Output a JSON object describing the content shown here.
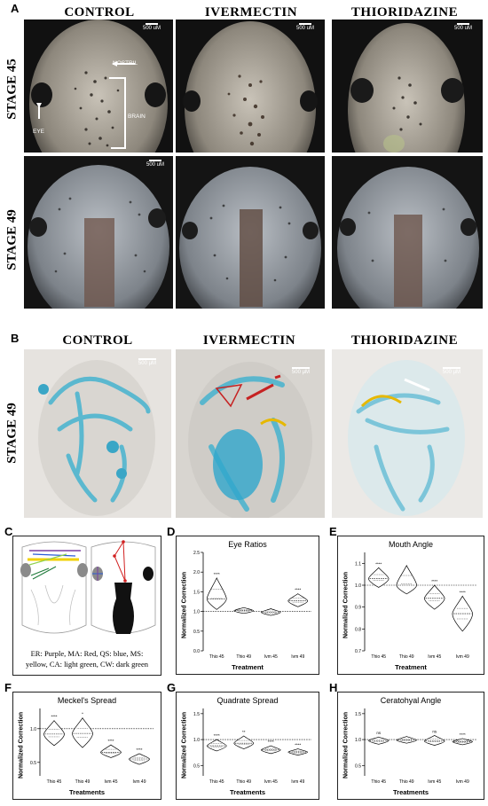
{
  "panel_labels": [
    "A",
    "B",
    "C",
    "D",
    "E",
    "F",
    "G",
    "H"
  ],
  "panel_a": {
    "columns": [
      "CONTROL",
      "IVERMECTIN",
      "THIORIDAZINE"
    ],
    "rows": [
      "STAGE 45",
      "STAGE 49"
    ],
    "annotations": {
      "nostril": "NOSTRIL",
      "eye": "EYE",
      "brain": "BRAIN"
    },
    "scale_bar": "500 uM"
  },
  "panel_b": {
    "columns": [
      "CONTROL",
      "IVERMECTIN",
      "THIORIDAZINE"
    ],
    "row": "STAGE 49",
    "scale_bar": "500 μM"
  },
  "panel_c": {
    "legend_line1": "ER: Purple, MA: Red, QS: blue, MS:",
    "legend_line2": "yellow, CA: light green, CW: dark green",
    "colors": {
      "purple": "#7a3fa0",
      "red": "#d12020",
      "blue": "#2a5bd7",
      "yellow": "#f2d000",
      "light_green": "#8fd14f",
      "dark_green": "#1f7a3a"
    }
  },
  "chart_data": [
    {
      "panel": "D",
      "type": "violin",
      "title": "Eye Ratios",
      "xlabel": "Treatment",
      "ylabel": "Normalized Correction",
      "categories": [
        "Thio 45",
        "Thio 49",
        "Ivm 45",
        "Ivm 49"
      ],
      "yticks": [
        "0.0",
        "0.5",
        "1.0",
        "1.5",
        "2.0",
        "2.5"
      ],
      "ylim": [
        0.0,
        2.5
      ],
      "reference_line": 1.0,
      "medians": [
        1.32,
        1.02,
        0.98,
        1.27
      ],
      "ranges": [
        [
          1.05,
          1.85
        ],
        [
          0.95,
          1.1
        ],
        [
          0.9,
          1.07
        ],
        [
          1.12,
          1.45
        ]
      ],
      "significance": [
        "****",
        "",
        "",
        "****"
      ]
    },
    {
      "panel": "E",
      "type": "violin",
      "title": "Mouth Angle",
      "xlabel": "Treatment",
      "ylabel": "Normalized Correction",
      "categories": [
        "Thio 45",
        "Thio 49",
        "Ivm 45",
        "Ivm 49"
      ],
      "yticks": [
        "0.7",
        "0.8",
        "0.9",
        "1.0",
        "1.1"
      ],
      "ylim": [
        0.7,
        1.15
      ],
      "reference_line": 1.0,
      "medians": [
        1.03,
        1.0,
        0.94,
        0.87
      ],
      "ranges": [
        [
          0.99,
          1.08
        ],
        [
          0.96,
          1.09
        ],
        [
          0.89,
          1.0
        ],
        [
          0.79,
          0.95
        ]
      ],
      "significance": [
        "****",
        "",
        "****",
        "****"
      ]
    },
    {
      "panel": "F",
      "type": "violin",
      "title": "Meckel's Spread",
      "xlabel": "Treatments",
      "ylabel": "Normalized Correction",
      "categories": [
        "Thio 45",
        "Thio 49",
        "Ivm 45",
        "Ivm 49"
      ],
      "yticks": [
        "0.5",
        "1.0"
      ],
      "ylim": [
        0.3,
        1.3
      ],
      "reference_line": 1.0,
      "medians": [
        0.92,
        0.93,
        0.65,
        0.55
      ],
      "ranges": [
        [
          0.75,
          1.12
        ],
        [
          0.72,
          1.16
        ],
        [
          0.57,
          0.76
        ],
        [
          0.47,
          0.63
        ]
      ],
      "significance": [
        "****",
        "*",
        "****",
        "****"
      ]
    },
    {
      "panel": "G",
      "type": "violin",
      "title": "Quadrate Spread",
      "xlabel": "Treatments",
      "ylabel": "Normalized Correction",
      "categories": [
        "Thio 45",
        "Thio 49",
        "Ivm 45",
        "Ivm 49"
      ],
      "yticks": [
        "0.5",
        "1.0",
        "1.5"
      ],
      "ylim": [
        0.3,
        1.6
      ],
      "reference_line": 1.0,
      "medians": [
        0.88,
        0.93,
        0.8,
        0.76
      ],
      "ranges": [
        [
          0.78,
          1.0
        ],
        [
          0.82,
          1.07
        ],
        [
          0.73,
          0.88
        ],
        [
          0.7,
          0.82
        ]
      ],
      "significance": [
        "****",
        "**",
        "****",
        "****"
      ]
    },
    {
      "panel": "H",
      "type": "violin",
      "title": "Ceratohyal Angle",
      "xlabel": "Treatments",
      "ylabel": "Normalized Correction",
      "categories": [
        "Thio 45",
        "Thio 49",
        "Ivm 45",
        "Ivm 49"
      ],
      "yticks": [
        "0.5",
        "1.0",
        "1.5"
      ],
      "ylim": [
        0.3,
        1.6
      ],
      "reference_line": 1.0,
      "medians": [
        0.98,
        0.99,
        0.97,
        0.96
      ],
      "ranges": [
        [
          0.91,
          1.05
        ],
        [
          0.93,
          1.06
        ],
        [
          0.89,
          1.08
        ],
        [
          0.9,
          1.02
        ]
      ],
      "significance": [
        "ns",
        "",
        "ns",
        "****"
      ]
    }
  ]
}
